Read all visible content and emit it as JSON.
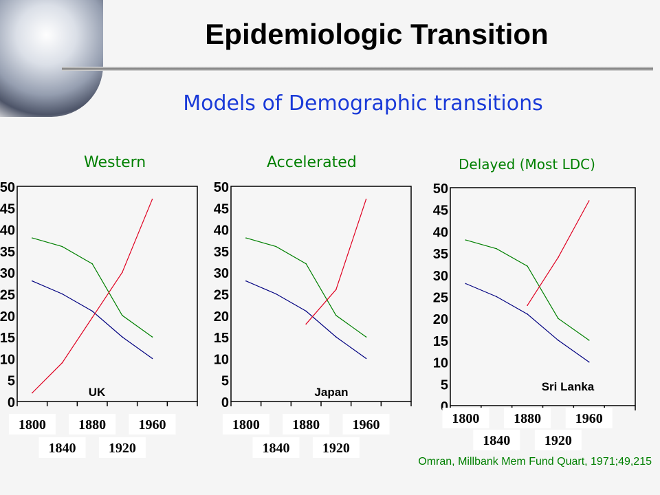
{
  "slide": {
    "title": "Epidemiologic Transition",
    "subtitle": "Models of Demographic transitions",
    "citation": "Omran, Millbank Mem Fund Quart, 1971;49,215"
  },
  "colors": {
    "title": "#000000",
    "subtitle": "#1a3ad8",
    "chart_titles": "#008000",
    "series": [
      "#008000",
      "#000080",
      "#e00020"
    ]
  },
  "chart_data": [
    {
      "type": "line",
      "title": "Western",
      "annotation": "UK",
      "categories": [
        "1800",
        "1840",
        "1880",
        "1920",
        "1960"
      ],
      "ylim": [
        0,
        50
      ],
      "yticks": [
        "0",
        "5",
        "10",
        "15",
        "20",
        "25",
        "30",
        "35",
        "40",
        "45",
        "50"
      ],
      "grid": false,
      "series": [
        {
          "values": [
            38,
            36,
            32,
            20,
            15
          ],
          "color": "#008000"
        },
        {
          "values": [
            28,
            25,
            21,
            15,
            10
          ],
          "color": "#000080"
        },
        {
          "values": [
            2,
            9,
            19.5,
            30,
            47
          ],
          "color": "#e00020"
        }
      ]
    },
    {
      "type": "line",
      "title": "Accelerated",
      "annotation": "Japan",
      "categories": [
        "1800",
        "1840",
        "1880",
        "1920",
        "1960"
      ],
      "ylim": [
        0,
        50
      ],
      "yticks": [
        "0",
        "5",
        "10",
        "15",
        "20",
        "25",
        "30",
        "35",
        "40",
        "45",
        "50"
      ],
      "grid": false,
      "series": [
        {
          "values": [
            38,
            36,
            32,
            20,
            15
          ],
          "color": "#008000"
        },
        {
          "values": [
            28,
            25,
            21,
            15,
            10
          ],
          "color": "#000080"
        },
        {
          "values": [
            null,
            null,
            18,
            26,
            47
          ],
          "color": "#e00020"
        }
      ]
    },
    {
      "type": "line",
      "title": "Delayed (Most LDC)",
      "annotation": "Sri Lanka",
      "categories": [
        "1800",
        "1840",
        "1880",
        "1920",
        "1960"
      ],
      "ylim": [
        0,
        50
      ],
      "yticks": [
        "0",
        "5",
        "10",
        "15",
        "20",
        "25",
        "30",
        "35",
        "40",
        "45",
        "50"
      ],
      "grid": false,
      "series": [
        {
          "values": [
            38,
            36,
            32,
            20,
            15
          ],
          "color": "#008000"
        },
        {
          "values": [
            28,
            25,
            21,
            15,
            10
          ],
          "color": "#000080"
        },
        {
          "values": [
            null,
            null,
            23,
            34,
            47
          ],
          "color": "#e00020"
        }
      ]
    }
  ]
}
